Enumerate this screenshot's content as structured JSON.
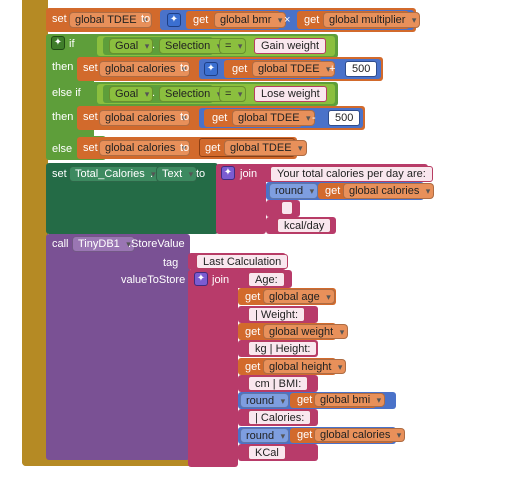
{
  "colors": {
    "gold": "#b58a24",
    "orange": "#d26a2c",
    "blue": "#4a72c9",
    "green": "#5e9e3a",
    "lime": "#8bbf3e",
    "teal": "#246b46",
    "pink": "#b83b6a",
    "purple": "#7a5194"
  },
  "set_tdee": {
    "set": "set",
    "var": "global TDEE",
    "to": "to",
    "get1": "get",
    "var1": "global bmr",
    "op": "×",
    "get2": "get",
    "var2": "global multiplier"
  },
  "if_block": {
    "if": "if",
    "then": "then",
    "elseif": "else if",
    "then2": "then",
    "else": "else",
    "cond1": {
      "component": "Goal",
      "dot": ".",
      "prop": "Selection",
      "op": "=",
      "value": "Gain weight"
    },
    "cond2": {
      "component": "Goal",
      "dot": ".",
      "prop": "Selection",
      "op": "=",
      "value": "Lose weight"
    },
    "then1": {
      "set": "set",
      "var": "global calories",
      "to": "to",
      "get": "get",
      "var2": "global TDEE",
      "op": "+",
      "num": "500"
    },
    "then2b": {
      "set": "set",
      "var": "global calories",
      "to": "to",
      "get": "get",
      "var2": "global TDEE",
      "op": "-",
      "num": "500"
    },
    "else1": {
      "set": "set",
      "var": "global calories",
      "to": "to",
      "get": "get",
      "var2": "global TDEE"
    }
  },
  "set_label": {
    "set": "set",
    "component": "Total_Calories",
    "dot": ".",
    "prop": "Text",
    "to": "to",
    "join": "join",
    "str1": "Your total calories per day are:",
    "round": "round",
    "get": "get",
    "var": "global calories",
    "str2": " ",
    "str3": "kcal/day"
  },
  "store": {
    "call": "call",
    "component": "TinyDB1",
    "method": ".StoreValue",
    "tag_label": "tag",
    "tag_value": "Last Calculation",
    "value_label": "valueToStore",
    "join": "join",
    "items": [
      {
        "type": "str",
        "text": "Age:"
      },
      {
        "type": "get",
        "get": "get",
        "var": "global age"
      },
      {
        "type": "str",
        "text": "| Weight:"
      },
      {
        "type": "get",
        "get": "get",
        "var": "global weight"
      },
      {
        "type": "str",
        "text": "kg | Height:"
      },
      {
        "type": "get",
        "get": "get",
        "var": "global height"
      },
      {
        "type": "str",
        "text": "cm | BMI:"
      },
      {
        "type": "round",
        "round": "round",
        "get": "get",
        "var": "global bmi"
      },
      {
        "type": "str",
        "text": "| Calories:"
      },
      {
        "type": "round",
        "round": "round",
        "get": "get",
        "var": "global calories"
      },
      {
        "type": "str",
        "text": "KCal"
      }
    ]
  }
}
